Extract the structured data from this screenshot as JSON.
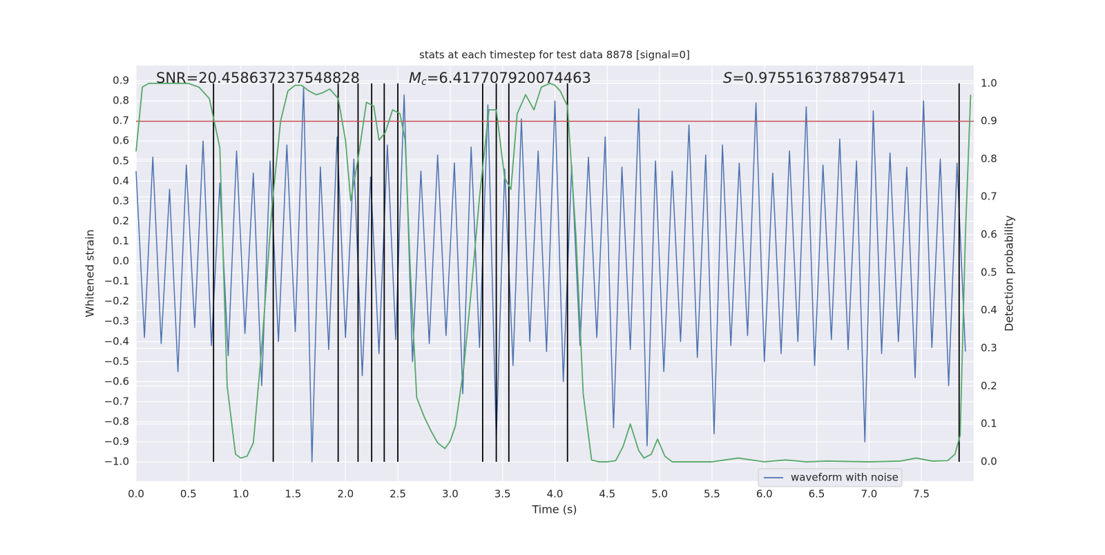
{
  "chart_data": {
    "type": "line",
    "title": "stats at each timestep for test data 8878 [signal=0]",
    "xlabel": "Time (s)",
    "ylabel": "Whitened strain",
    "y2label": "Detection probability",
    "annotations": [
      {
        "text": "SNR=20.458637237548828"
      },
      {
        "symbol": "M",
        "subscript": "c",
        "text": "=6.417707920074463"
      },
      {
        "symbol": "S",
        "text": "=0.9755163788795471"
      }
    ],
    "xlim": [
      0,
      8.0
    ],
    "ylim": [
      -1.096,
      0.976
    ],
    "y2lim": [
      -0.051,
      1.047
    ],
    "xticks": [
      {
        "value": 0,
        "label": "0.0"
      },
      0.5,
      {
        "value": 1,
        "label": "1.0"
      },
      1.5,
      {
        "value": 2,
        "label": "2.0"
      },
      2.5,
      {
        "value": 3,
        "label": "3.0"
      },
      3.5,
      {
        "value": 4,
        "label": "4.0"
      },
      4.5,
      {
        "value": 5,
        "label": "5.0"
      },
      5.5,
      {
        "value": 6,
        "label": "6.0"
      },
      6.5,
      {
        "value": 7,
        "label": "7.0"
      },
      7.5
    ],
    "yticks": [
      0.9,
      0.8,
      0.7,
      0.6,
      0.5,
      0.4,
      0.3,
      0.2,
      0.1,
      {
        "value": 0,
        "label": "0.0"
      },
      {
        "value": -0.1,
        "label": "−0.1"
      },
      {
        "value": -0.2,
        "label": "−0.2"
      },
      {
        "value": -0.3,
        "label": "−0.3"
      },
      {
        "value": -0.4,
        "label": "−0.4"
      },
      {
        "value": -0.5,
        "label": "−0.5"
      },
      {
        "value": -0.6,
        "label": "−0.6"
      },
      {
        "value": -0.7,
        "label": "−0.7"
      },
      {
        "value": -0.8,
        "label": "−0.8"
      },
      {
        "value": -0.9,
        "label": "−0.9"
      },
      {
        "value": -1,
        "label": "−1.0"
      }
    ],
    "y2ticks": [
      {
        "value": 1,
        "label": "1.0"
      },
      0.9,
      0.8,
      0.7,
      0.6,
      0.5,
      0.4,
      0.3,
      0.2,
      0.1,
      {
        "value": 0,
        "label": "0.0"
      }
    ],
    "grid": true,
    "legend": "lower right",
    "series": [
      {
        "name": "waveform with noise",
        "color": "#4c72b0",
        "x": [
          0,
          0.08,
          0.16,
          0.24,
          0.32,
          0.4,
          0.48,
          0.56,
          0.64,
          0.72,
          0.8,
          0.88,
          0.96,
          1.04,
          1.12,
          1.2,
          1.28,
          1.36,
          1.44,
          1.52,
          1.6,
          1.68,
          1.76,
          1.84,
          1.92,
          2.0,
          2.08,
          2.16,
          2.24,
          2.32,
          2.4,
          2.48,
          2.56,
          2.64,
          2.72,
          2.8,
          2.88,
          2.96,
          3.04,
          3.12,
          3.2,
          3.28,
          3.36,
          3.44,
          3.52,
          3.6,
          3.68,
          3.76,
          3.84,
          3.92,
          4.0,
          4.08,
          4.16,
          4.24,
          4.32,
          4.4,
          4.48,
          4.56,
          4.64,
          4.72,
          4.8,
          4.88,
          4.96,
          5.04,
          5.12,
          5.2,
          5.28,
          5.36,
          5.44,
          5.52,
          5.6,
          5.68,
          5.76,
          5.84,
          5.92,
          6.0,
          6.08,
          6.16,
          6.24,
          6.32,
          6.4,
          6.48,
          6.56,
          6.64,
          6.72,
          6.8,
          6.88,
          6.96,
          7.04,
          7.12,
          7.2,
          7.28,
          7.36,
          7.44,
          7.52,
          7.6,
          7.68,
          7.76,
          7.84,
          7.92
        ],
        "values": [
          0.45,
          -0.38,
          0.52,
          -0.41,
          0.36,
          -0.55,
          0.48,
          -0.33,
          0.6,
          -0.42,
          0.39,
          -0.47,
          0.55,
          -0.36,
          0.44,
          -0.62,
          0.5,
          -0.4,
          0.58,
          -0.35,
          0.87,
          -1.0,
          0.47,
          -0.44,
          0.62,
          -0.38,
          0.51,
          -0.57,
          0.42,
          -0.46,
          0.58,
          -0.39,
          0.83,
          -0.5,
          0.45,
          -0.41,
          0.53,
          -0.37,
          0.49,
          -0.66,
          0.57,
          -0.43,
          0.78,
          -0.89,
          0.46,
          -0.52,
          0.71,
          -0.4,
          0.55,
          -0.45,
          0.8,
          -0.6,
          0.48,
          -0.42,
          0.52,
          -0.38,
          0.62,
          -0.83,
          0.47,
          -0.44,
          0.76,
          -0.92,
          0.5,
          -0.55,
          0.45,
          -0.4,
          0.68,
          -0.48,
          0.53,
          -0.86,
          0.58,
          -0.42,
          0.49,
          -0.37,
          0.79,
          -0.5,
          0.44,
          -0.46,
          0.55,
          -0.4,
          0.77,
          -0.52,
          0.48,
          -0.39,
          0.61,
          -0.44,
          0.5,
          -0.9,
          0.75,
          -0.46,
          0.54,
          -0.4,
          0.47,
          -0.58,
          0.8,
          -0.43,
          0.51,
          -0.62,
          0.49,
          -0.45
        ]
      },
      {
        "color": "#55a868",
        "axis": "y2",
        "x": [
          0,
          0.06,
          0.12,
          0.5,
          0.6,
          0.7,
          0.8,
          0.87,
          0.95,
          1.0,
          1.06,
          1.12,
          1.2,
          1.3,
          1.38,
          1.45,
          1.52,
          1.58,
          1.65,
          1.72,
          1.78,
          1.85,
          1.93,
          2.0,
          2.05,
          2.12,
          2.2,
          2.27,
          2.32,
          2.38,
          2.45,
          2.52,
          2.57,
          2.62,
          2.68,
          2.75,
          2.82,
          2.88,
          2.95,
          3.0,
          3.05,
          3.13,
          3.2,
          3.28,
          3.37,
          3.44,
          3.52,
          3.58,
          3.64,
          3.72,
          3.8,
          3.87,
          3.95,
          4.0,
          4.05,
          4.12,
          4.2,
          4.27,
          4.35,
          4.42,
          4.5,
          4.58,
          4.65,
          4.72,
          4.8,
          4.85,
          4.92,
          4.98,
          5.05,
          5.12,
          5.5,
          5.75,
          6.0,
          6.2,
          6.4,
          6.6,
          7.0,
          7.3,
          7.45,
          7.6,
          7.75,
          7.82,
          7.87,
          7.92,
          7.97
        ],
        "values": [
          0.82,
          0.99,
          1.0,
          1.0,
          0.99,
          0.96,
          0.83,
          0.2,
          0.02,
          0.01,
          0.015,
          0.05,
          0.3,
          0.68,
          0.9,
          0.98,
          0.995,
          0.995,
          0.98,
          0.97,
          0.975,
          0.985,
          0.96,
          0.85,
          0.69,
          0.8,
          0.95,
          0.94,
          0.85,
          0.87,
          0.93,
          0.92,
          0.85,
          0.5,
          0.17,
          0.12,
          0.08,
          0.05,
          0.035,
          0.055,
          0.095,
          0.25,
          0.45,
          0.7,
          0.93,
          0.93,
          0.75,
          0.72,
          0.92,
          0.97,
          0.93,
          0.99,
          1.0,
          0.995,
          0.98,
          0.94,
          0.6,
          0.18,
          0.005,
          0,
          0,
          0.003,
          0.04,
          0.1,
          0.03,
          0.01,
          0.02,
          0.06,
          0.015,
          0,
          0,
          0.01,
          0,
          0.005,
          0,
          0.002,
          0,
          0.002,
          0.01,
          0.002,
          0.003,
          0.02,
          0.07,
          0.6,
          0.97
        ]
      }
    ],
    "threshold": {
      "value": 0.9,
      "axis": "y2",
      "color": "#c44e52"
    },
    "detections": {
      "x": [
        0.74,
        1.31,
        1.93,
        2.12,
        2.25,
        2.37,
        2.5,
        3.31,
        3.44,
        3.56,
        4.12,
        7.86
      ],
      "color": "#000000"
    }
  }
}
